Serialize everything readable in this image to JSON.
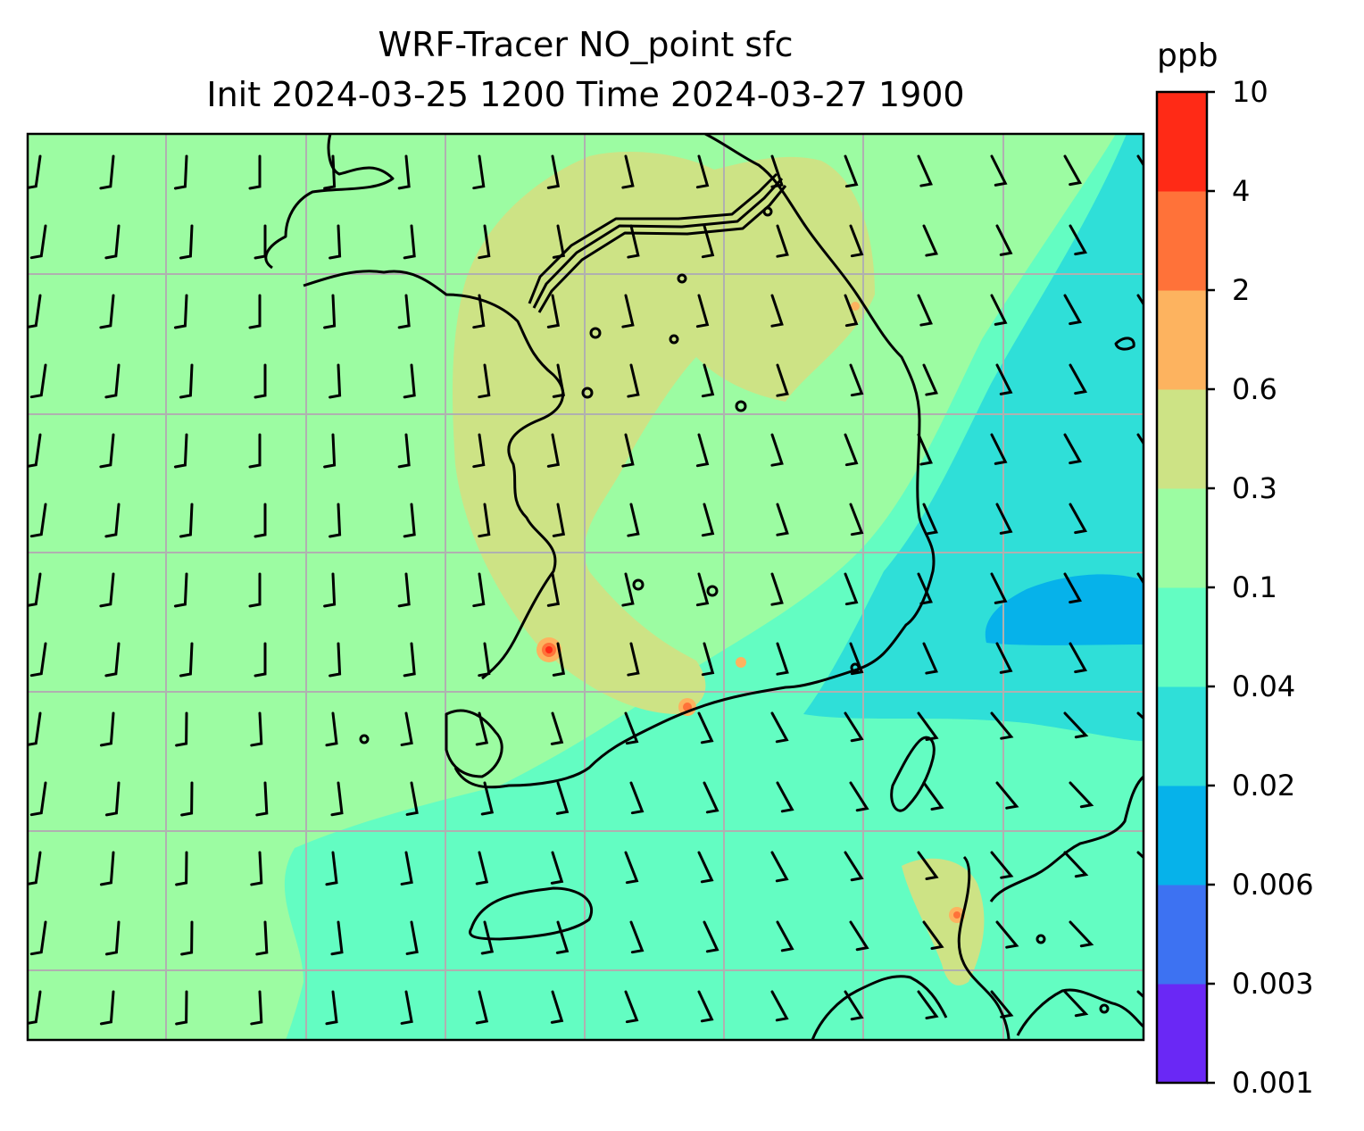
{
  "title_line1": "WRF-Tracer NO_point sfc",
  "title_line2": "Init 2024-03-25 1200 Time 2024-03-27 1900",
  "colorbar": {
    "unit": "ppb",
    "levels": [
      "0.001",
      "0.003",
      "0.006",
      "0.02",
      "0.04",
      "0.1",
      "0.3",
      "0.6",
      "2",
      "4",
      "10"
    ],
    "colors": [
      "#6a28f5",
      "#3d72f2",
      "#06b2ea",
      "#2fdfd8",
      "#63fdc2",
      "#9cfca2",
      "#cde385",
      "#fdb35f",
      "#ff7239",
      "#ff2a16"
    ]
  },
  "map": {
    "background_color": "#9cfca2",
    "gridline_color": "#b0b0b0",
    "coastline_color": "#000000",
    "wind_barb_color": "#000000"
  }
}
